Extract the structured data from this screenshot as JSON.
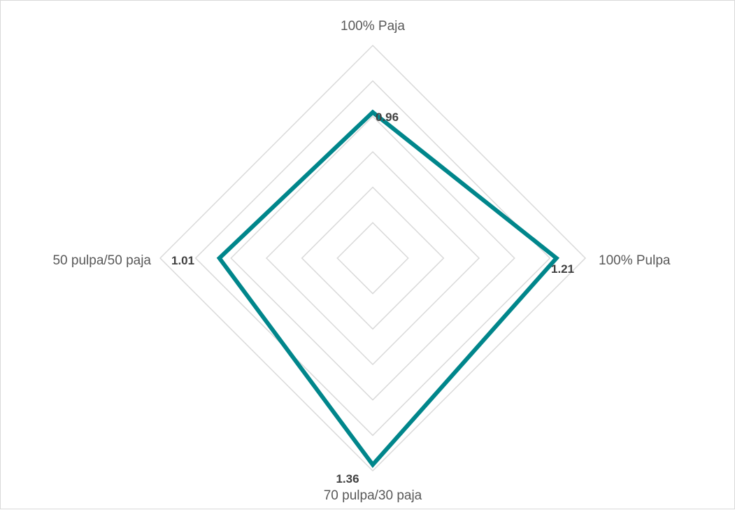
{
  "chart_data": {
    "type": "radar",
    "title": "",
    "categories": [
      "100% Paja",
      "100% Pulpa",
      "70 pulpa/30 paja",
      "50 pulpa/50 paja"
    ],
    "series": [
      {
        "values": [
          0.96,
          1.21,
          1.36,
          1.01
        ],
        "color": "#00868B"
      }
    ],
    "data_labels": [
      "0.96",
      "1.21",
      "1.36",
      "1.01"
    ],
    "rlim": [
      0,
      1.4
    ],
    "grid_rings": 6,
    "grid": true,
    "legend": "none",
    "grid_color": "#d9d9d9"
  }
}
